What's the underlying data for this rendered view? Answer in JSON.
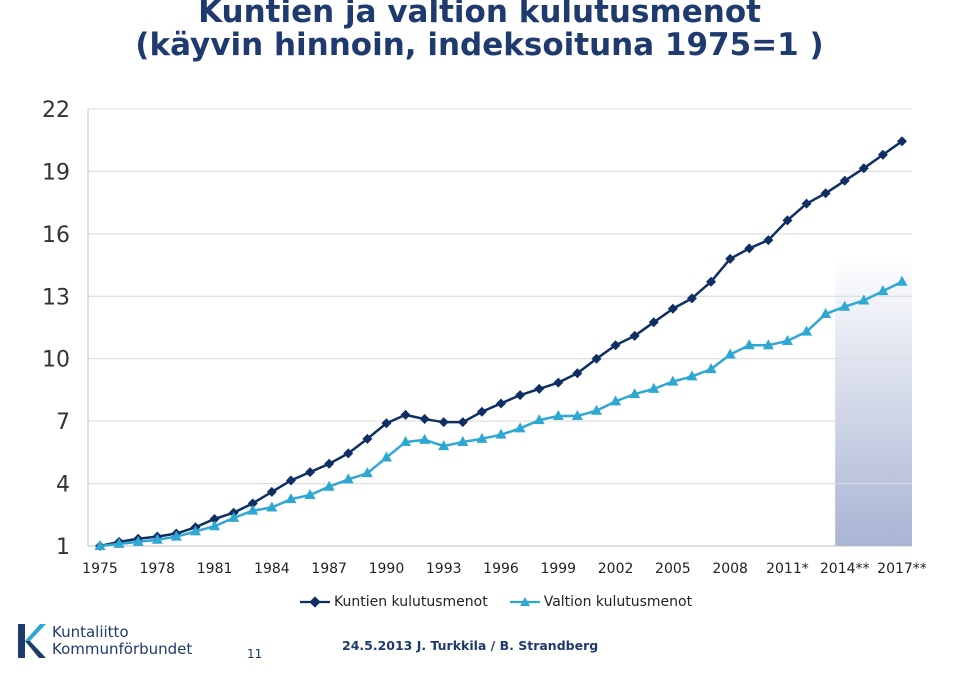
{
  "slide": {
    "title_line1": "Kuntien ja valtion kulutusmenot",
    "title_line2": "(käyvin hinnoin, indeksoituna  1975=1 )",
    "slide_number": "11",
    "footer": "24.5.2013 J. Turkkila / B. Strandberg",
    "logo_line1": "Kuntaliitto",
    "logo_line2": "Kommunförbundet"
  },
  "colors": {
    "kunta": "#0f2f63",
    "valtio": "#2fa7d3",
    "grid": "#d9d9d9",
    "title": "#1f3a6e",
    "forecast_shade": "#a9b4d4"
  },
  "chart_data": {
    "type": "line",
    "title": "Kuntien ja valtion kulutusmenot (käyvin hinnoin, indeksoituna  1975=1 )",
    "xlabel": "",
    "ylabel": "",
    "x": [
      1975,
      1976,
      1977,
      1978,
      1979,
      1980,
      1981,
      1982,
      1983,
      1984,
      1985,
      1986,
      1987,
      1988,
      1989,
      1990,
      1991,
      1992,
      1993,
      1994,
      1995,
      1996,
      1997,
      1998,
      1999,
      2000,
      2001,
      2002,
      2003,
      2004,
      2005,
      2006,
      2007,
      2008,
      2009,
      2010,
      2011,
      2012,
      2013,
      2014,
      2015,
      2016,
      2017
    ],
    "tick_labels": [
      "1975",
      "1978",
      "1981",
      "1984",
      "1987",
      "1990",
      "1993",
      "1996",
      "1999",
      "2002",
      "2005",
      "2008",
      "2011*",
      "2014**",
      "2017**"
    ],
    "y_ticks": [
      1,
      4,
      7,
      10,
      13,
      16,
      19,
      22
    ],
    "ylim": [
      1,
      22
    ],
    "forecast_start": 2014,
    "grid": "horizontal",
    "legend_position": "bottom",
    "series": [
      {
        "name": "Kuntien kulutusmenot",
        "marker": "diamond",
        "values": [
          1.0,
          1.2,
          1.35,
          1.45,
          1.6,
          1.9,
          2.3,
          2.6,
          3.05,
          3.6,
          4.15,
          4.55,
          4.95,
          5.45,
          6.15,
          6.9,
          7.3,
          7.1,
          6.95,
          6.95,
          7.45,
          7.85,
          8.25,
          8.55,
          8.85,
          9.3,
          10.0,
          10.65,
          11.1,
          11.75,
          12.4,
          12.9,
          13.7,
          14.8,
          15.3,
          15.7,
          16.65,
          17.45,
          17.95,
          18.55,
          19.15,
          19.8,
          20.45
        ]
      },
      {
        "name": "Valtion kulutusmenot",
        "marker": "triangle",
        "values": [
          1.0,
          1.1,
          1.2,
          1.3,
          1.45,
          1.7,
          1.95,
          2.35,
          2.7,
          2.85,
          3.25,
          3.45,
          3.85,
          4.2,
          4.5,
          5.25,
          6.0,
          6.1,
          5.8,
          6.0,
          6.15,
          6.35,
          6.65,
          7.05,
          7.25,
          7.25,
          7.5,
          7.95,
          8.3,
          8.55,
          8.9,
          9.15,
          9.5,
          10.2,
          10.65,
          10.65,
          10.85,
          11.3,
          12.15,
          12.5,
          12.8,
          13.25,
          13.7
        ]
      }
    ]
  }
}
